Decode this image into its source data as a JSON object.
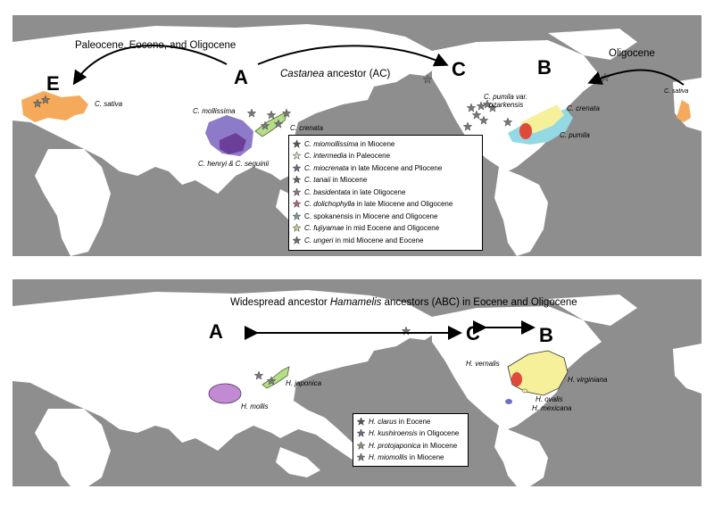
{
  "colors": {
    "ocean": "#8e8e8e",
    "land": "#ffffff",
    "sativa": "#f5a95a",
    "asia_purple": "#8d7ac9",
    "asia_dark": "#6b3f99",
    "japan_green": "#b6dd8a",
    "na_yellow": "#f6f09a",
    "na_cyan": "#93d9e4",
    "red": "#e04a3a",
    "mollis_purple": "#c18ad2",
    "mexican_blue": "#6c6fc9"
  },
  "top": {
    "labels": {
      "A": "A",
      "B": "B",
      "C": "C",
      "E": "E"
    },
    "arrow_left_text": "Paleocene, Eocene, and Oligocene",
    "arrow_right_text": "Oligocene",
    "ancestor_italic": "Castanea",
    "ancestor_rest": " ancestor (AC)",
    "species": {
      "sativa_eu": "C. sativa",
      "sativa_right": "C. sativa",
      "mollissima": "C. mollissima",
      "crenata_asia": "C. crenata",
      "henryi": "C. henryi & C. seguinii",
      "pumila_var_1": "C. pumila var.",
      "pumila_var_2": "ozarkensis",
      "crenata_na": "C. crenata",
      "pumila": "C. pumila"
    },
    "legend": [
      {
        "italic": "C. miomollissima",
        "rest": " in Miocene",
        "star": "#555555"
      },
      {
        "italic": "C. intermedia",
        "rest": " in Paleocene",
        "star": "#d9d6c6"
      },
      {
        "italic": "C. miocrenata",
        "rest": " in late Miocene and Pliocene",
        "star": "#6d6a80"
      },
      {
        "italic": "C. tanaii",
        "rest": " in Miocene",
        "star": "#646464"
      },
      {
        "italic": "C. basidentata",
        "rest": " in late Oligocene",
        "star": "#8a7590"
      },
      {
        "italic": "C. dolichophylla",
        "rest": " in late Miocene and Oligocene",
        "star": "#b25f7a"
      },
      {
        "italic": "",
        "rest": "C. spokanensis in Miocene and Oligocene",
        "star": "#7c99a0"
      },
      {
        "italic": "C. fujiyamae",
        "rest": " in mid Eocene and Oligocene",
        "star": "#c7c990"
      },
      {
        "italic": "C. ungeri",
        "rest": " in mid Miocene and Eocene",
        "star": "#6c6c6c"
      }
    ]
  },
  "bottom": {
    "title_pre": "Widespread ancestor ",
    "title_italic": "Hamamelis",
    "title_post": " ancestors (ABC) in Eocene and Oligocene",
    "labels": {
      "A": "A",
      "B": "B",
      "C": "C"
    },
    "species": {
      "japonica": "H. japonica",
      "mollis": "H. mollis",
      "vernalis": "H. vernalis",
      "virginiana": "H. virginiana",
      "ovalis": "H. ovalis",
      "mexicana": "H. mexicana"
    },
    "legend": [
      {
        "italic": "H. clarus",
        "rest": " in Eocene",
        "star": "#555555"
      },
      {
        "italic": "H. kushiroensis",
        "rest": " in Oligocene",
        "star": "#6d6a80"
      },
      {
        "italic": "H. protojaponica",
        "rest": " in Miocene",
        "star": "#8b8f7c"
      },
      {
        "italic": "H. miomollis",
        "rest": " in Miocene",
        "star": "#777777"
      }
    ]
  }
}
